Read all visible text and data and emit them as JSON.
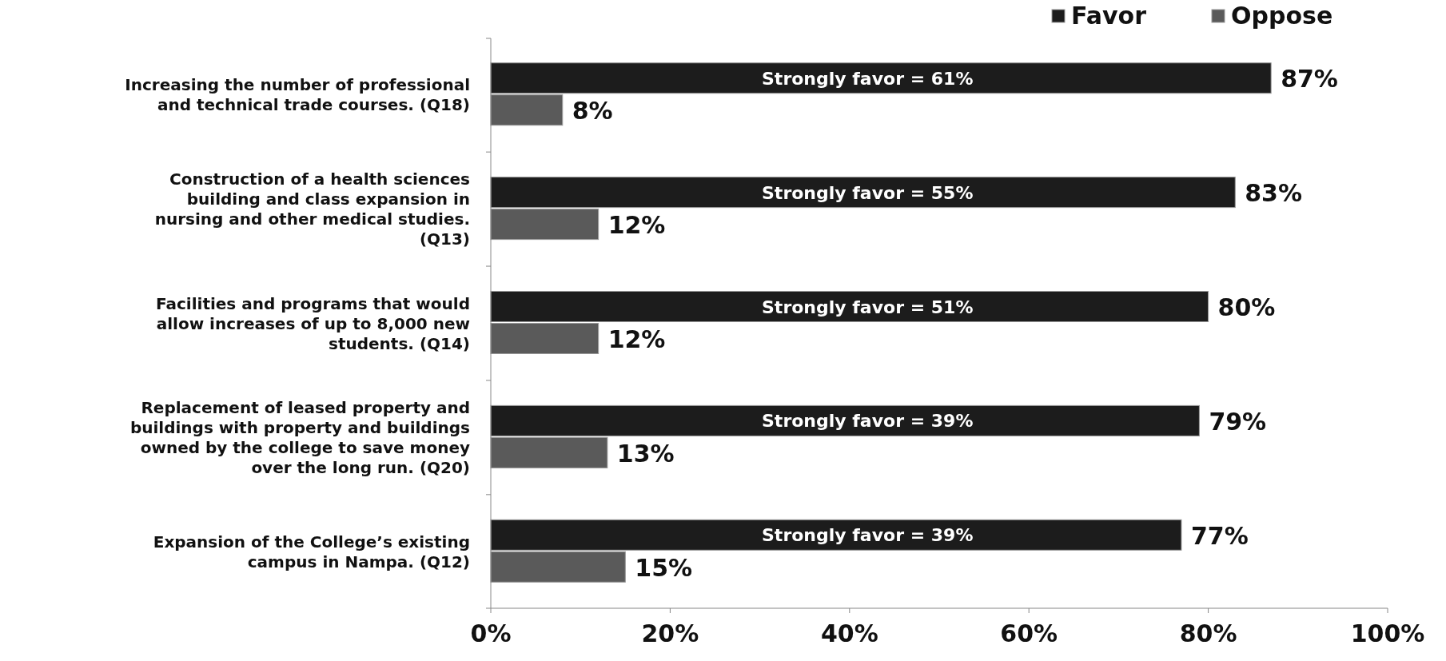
{
  "chart_data": {
    "type": "bar",
    "orientation": "horizontal",
    "categories": [
      "Increasing the number of professional and technical trade courses. (Q18)",
      "Construction of a health sciences building and class expansion in nursing and other medical studies. (Q13)",
      "Facilities and programs that would allow increases of up to 8,000 new students. (Q14)",
      "Replacement of leased property and buildings with property and buildings owned by the college to save money over the long run. (Q20)",
      "Expansion of the College’s existing campus in Nampa. (Q12)"
    ],
    "series": [
      {
        "name": "Favor",
        "color": "#1c1c1c",
        "values": [
          87,
          83,
          80,
          79,
          77
        ],
        "value_labels": [
          "87%",
          "83%",
          "80%",
          "79%",
          "77%"
        ]
      },
      {
        "name": "Oppose",
        "color": "#5a5a5a",
        "values": [
          8,
          12,
          12,
          13,
          15
        ],
        "value_labels": [
          "8%",
          "12%",
          "12%",
          "13%",
          "15%"
        ]
      }
    ],
    "annotations": [
      {
        "text": "Strongly favor = 61%",
        "y": "Increasing the number of professional and technical trade courses. (Q18)"
      },
      {
        "text": "Strongly favor = 55%",
        "y": "Construction of a health sciences building and class expansion in nursing and other medical studies. (Q13)"
      },
      {
        "text": "Strongly favor = 51%",
        "y": "Facilities and programs that would allow increases of up to 8,000 new students. (Q14)"
      },
      {
        "text": "Strongly favor = 39%",
        "y": "Replacement of leased property and buildings with property and buildings owned by the college to save money over the long run. (Q20)"
      },
      {
        "text": "Strongly favor = 39%",
        "y": "Expansion of the College’s existing campus in Nampa. (Q12)"
      }
    ],
    "xlim": [
      0,
      100
    ],
    "xticks": [
      {
        "value": 0,
        "label": "0%"
      },
      {
        "value": 20,
        "label": "20%"
      },
      {
        "value": 40,
        "label": "40%"
      },
      {
        "value": 60,
        "label": "60%"
      },
      {
        "value": 80,
        "label": "80%"
      },
      {
        "value": 100,
        "label": "100%"
      }
    ],
    "legend": "top right",
    "grid": false
  }
}
